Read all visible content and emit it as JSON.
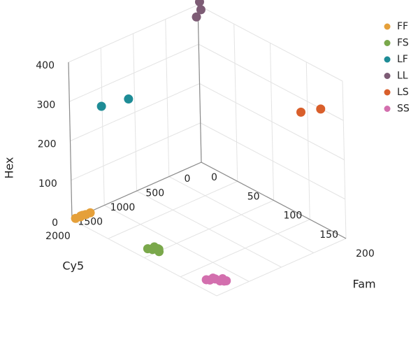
{
  "chart_data": {
    "type": "scatter",
    "projection": "3d",
    "axes": {
      "x": {
        "label": "Fam",
        "range": [
          0,
          200
        ],
        "ticks": [
          0,
          50,
          100,
          150,
          200
        ]
      },
      "y": {
        "label": "Cy5",
        "range": [
          0,
          2000
        ],
        "ticks": [
          0,
          500,
          1000,
          1500,
          2000
        ]
      },
      "z": {
        "label": "Hex",
        "range": [
          0,
          400
        ],
        "ticks": [
          0,
          100,
          200,
          300,
          400
        ]
      }
    },
    "grid": true,
    "legend_position": "right",
    "series": [
      {
        "name": "FF",
        "color": "#E5A03A",
        "points": [
          [
            5,
            2000,
            8
          ],
          [
            8,
            1960,
            12
          ],
          [
            6,
            1930,
            10
          ],
          [
            10,
            1900,
            15
          ],
          [
            4,
            1880,
            6
          ],
          [
            12,
            1850,
            18
          ]
        ]
      },
      {
        "name": "FS",
        "color": "#7AA84B",
        "points": [
          [
            95,
            1890,
            10
          ],
          [
            100,
            1870,
            12
          ],
          [
            98,
            1850,
            8
          ],
          [
            105,
            1830,
            14
          ],
          [
            102,
            1810,
            11
          ],
          [
            96,
            1800,
            9
          ],
          [
            108,
            1860,
            13
          ],
          [
            100,
            1820,
            10
          ]
        ]
      },
      {
        "name": "LF",
        "color": "#1E8C96",
        "points": [
          [
            10,
            1620,
            270
          ],
          [
            28,
            1400,
            290
          ]
        ]
      },
      {
        "name": "LL",
        "color": "#7D5C75",
        "points": [
          [
            5,
            80,
            380
          ],
          [
            8,
            60,
            420
          ],
          [
            10,
            30,
            440
          ],
          [
            6,
            20,
            395
          ]
        ]
      },
      {
        "name": "LS",
        "color": "#D95F2B",
        "points": [
          [
            150,
            100,
            280
          ],
          [
            175,
            70,
            310
          ]
        ]
      },
      {
        "name": "SS",
        "color": "#D36FAE",
        "points": [
          [
            175,
            1880,
            8
          ],
          [
            180,
            1880,
            12
          ],
          [
            178,
            1810,
            10
          ],
          [
            183,
            1830,
            14
          ],
          [
            186,
            1790,
            9
          ],
          [
            190,
            1770,
            11
          ],
          [
            192,
            1760,
            13
          ],
          [
            185,
            1740,
            10
          ]
        ]
      }
    ]
  }
}
